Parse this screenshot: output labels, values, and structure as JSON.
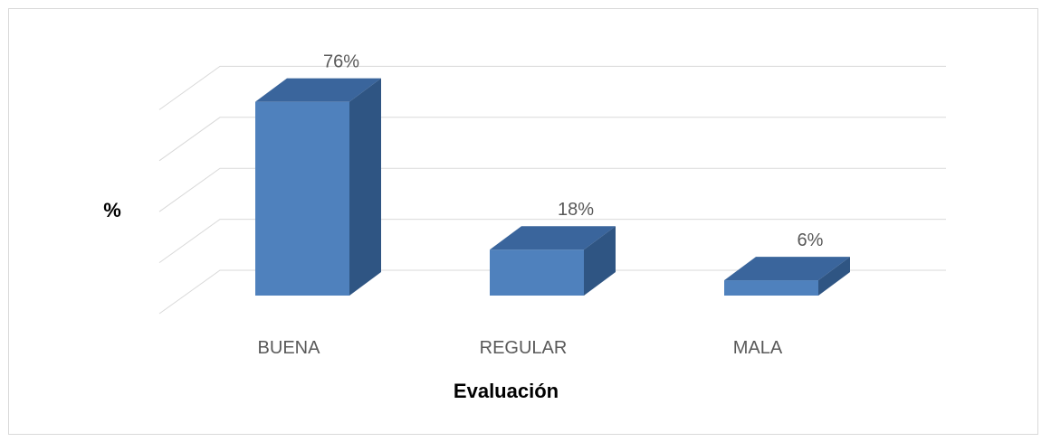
{
  "chart_data": {
    "type": "bar",
    "title": "",
    "categories": [
      "BUENA",
      "REGULAR",
      "MALA"
    ],
    "values": [
      76,
      18,
      6
    ],
    "data_labels": [
      "76%",
      "18%",
      "6%"
    ],
    "xlabel": "Evaluación",
    "ylabel": "%",
    "ylim": [
      0,
      80
    ],
    "grid": true,
    "legend": "none",
    "three_d": true,
    "colors": {
      "front": "#4f81bd",
      "top": "#3a659c",
      "side": "#2f5583",
      "grid": "#d9d9d9",
      "text": "#595959"
    }
  }
}
